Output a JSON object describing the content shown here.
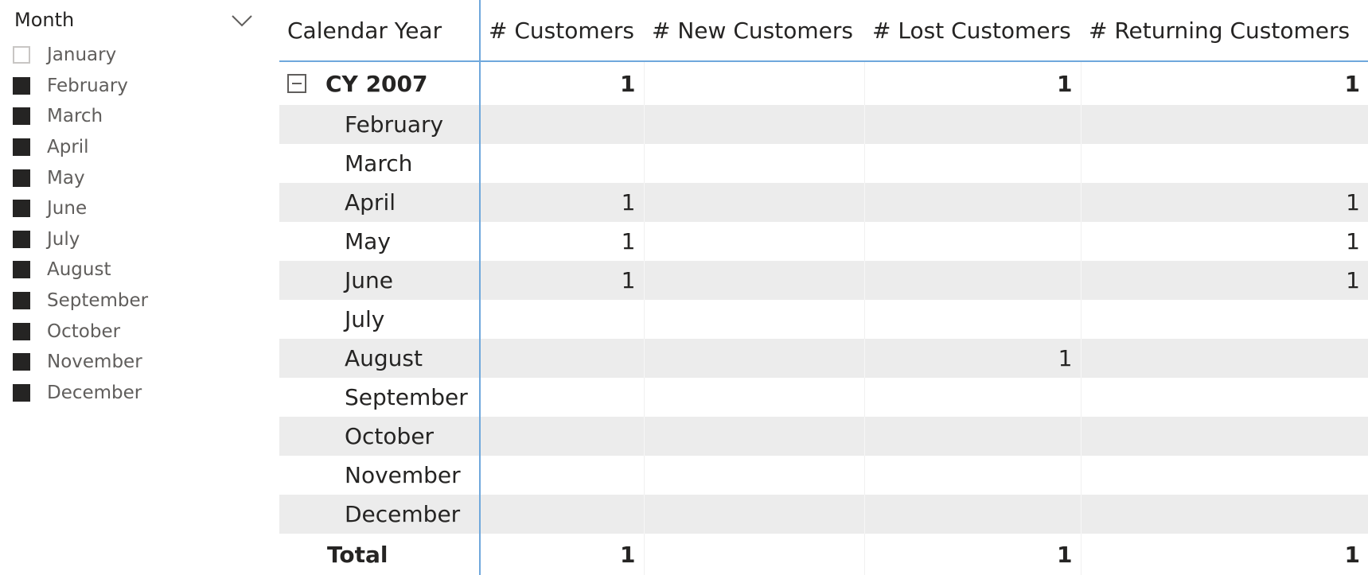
{
  "slicer": {
    "title": "Month",
    "chevron_icon": "chevron-down-icon",
    "items": [
      {
        "label": "January",
        "checked": false
      },
      {
        "label": "February",
        "checked": true
      },
      {
        "label": "March",
        "checked": true
      },
      {
        "label": "April",
        "checked": true
      },
      {
        "label": "May",
        "checked": true
      },
      {
        "label": "June",
        "checked": true
      },
      {
        "label": "July",
        "checked": true
      },
      {
        "label": "August",
        "checked": true
      },
      {
        "label": "September",
        "checked": true
      },
      {
        "label": "October",
        "checked": true
      },
      {
        "label": "November",
        "checked": true
      },
      {
        "label": "December",
        "checked": true
      }
    ]
  },
  "matrix": {
    "headers": [
      "Calendar Year",
      "# Customers",
      "# New Customers",
      "# Lost Customers",
      "# Returning Customers"
    ],
    "year_row": {
      "label": "CY 2007",
      "values": [
        "1",
        "",
        "1",
        "1"
      ],
      "icon": "collapse-icon"
    },
    "rows": [
      {
        "label": "February",
        "values": [
          "",
          "",
          "",
          ""
        ]
      },
      {
        "label": "March",
        "values": [
          "",
          "",
          "",
          ""
        ]
      },
      {
        "label": "April",
        "values": [
          "1",
          "",
          "",
          "1"
        ]
      },
      {
        "label": "May",
        "values": [
          "1",
          "",
          "",
          "1"
        ]
      },
      {
        "label": "June",
        "values": [
          "1",
          "",
          "",
          "1"
        ]
      },
      {
        "label": "July",
        "values": [
          "",
          "",
          "",
          ""
        ]
      },
      {
        "label": "August",
        "values": [
          "",
          "",
          "1",
          ""
        ]
      },
      {
        "label": "September",
        "values": [
          "",
          "",
          "",
          ""
        ]
      },
      {
        "label": "October",
        "values": [
          "",
          "",
          "",
          ""
        ]
      },
      {
        "label": "November",
        "values": [
          "",
          "",
          "",
          ""
        ]
      },
      {
        "label": "December",
        "values": [
          "",
          "",
          "",
          ""
        ]
      }
    ],
    "total_row": {
      "label": "Total",
      "values": [
        "1",
        "",
        "1",
        "1"
      ]
    }
  },
  "colors": {
    "accent_line": "#6fa8dc",
    "checked_box": "#252423",
    "unchecked_box": "#c8c6c4",
    "alt_row": "#ececec"
  }
}
